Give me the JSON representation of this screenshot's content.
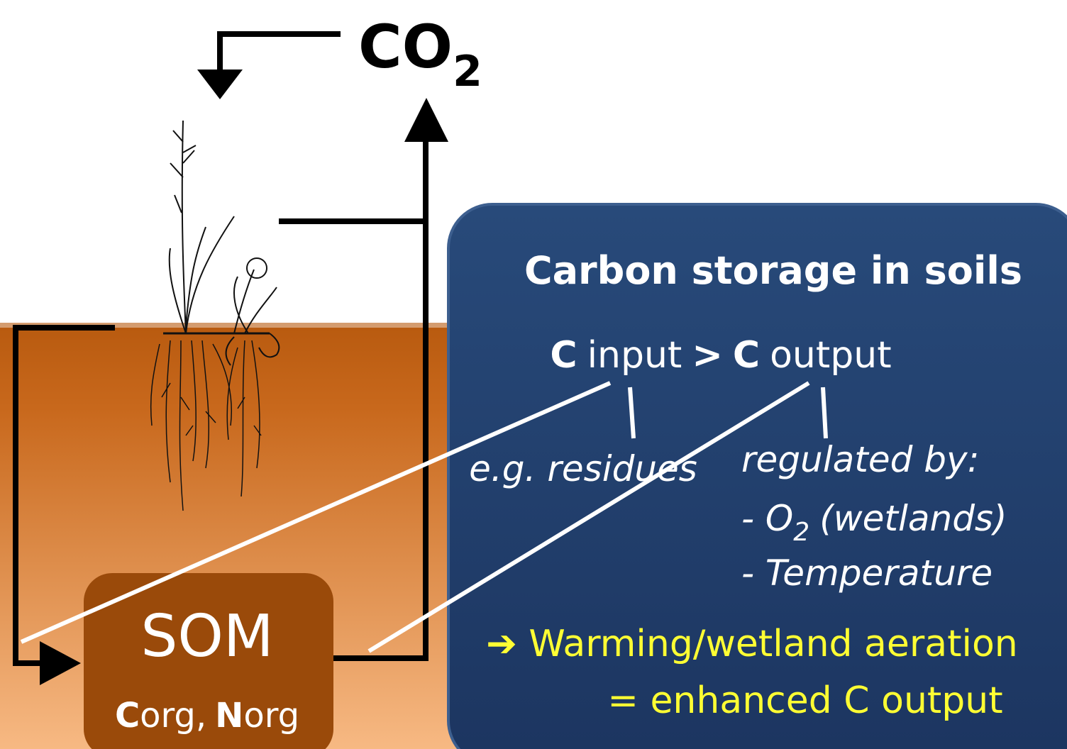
{
  "co2": {
    "main": "CO",
    "sub": "2"
  },
  "som": {
    "title": "SOM",
    "c": "C",
    "org1": "org,",
    "n": "N",
    "org2": "org"
  },
  "box": {
    "title": "Carbon storage in soils",
    "equation": {
      "c1": "C",
      "input": "input",
      "gt": ">",
      "c2": "C",
      "output": "output"
    },
    "input_example": "e.g. residues",
    "output_regulation": {
      "heading": "regulated by:",
      "o2_dash": "- O",
      "o2_sub": "2",
      "o2_rest": "(wetlands)",
      "temperature": "- Temperature"
    },
    "conclusion": {
      "line1": "➔ Warming/wetland aeration",
      "line2": "= enhanced C output"
    }
  }
}
